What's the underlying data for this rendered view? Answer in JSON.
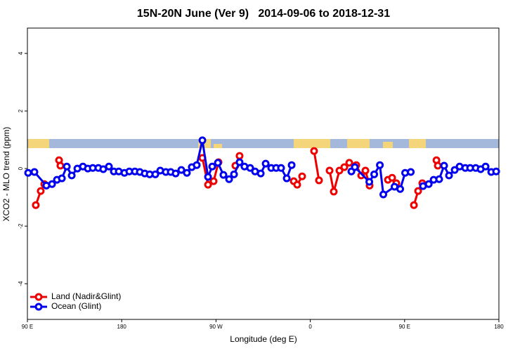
{
  "chart_data": {
    "type": "line",
    "title": "15N-20N June (Ver 9)   2014-09-06 to 2018-12-31",
    "xlabel": "Longitude (deg E)",
    "ylabel": "XCO2 - MLO trend (ppm)",
    "xlim": [
      90,
      540
    ],
    "ylim": [
      -5.24,
      4.88
    ],
    "xticks": [
      {
        "value": 90,
        "label": "90 E"
      },
      180,
      {
        "value": 270,
        "label": "90 W"
      },
      {
        "value": 360,
        "label": "0"
      },
      {
        "value": 450,
        "label": "90 E"
      },
      {
        "value": 540,
        "label": "180"
      }
    ],
    "yticks": [
      4,
      2,
      0,
      -2,
      -4
    ],
    "legend": "bottom-left",
    "series": [
      {
        "name": "Land (Nadir&Glint)",
        "color": "#ee0000",
        "x": [
          98.0,
          102.7,
          106.1,
          null,
          120.2,
          121.5,
          null,
          257.0,
          262.4,
          267.7,
          272.4,
          null,
          288.5,
          292.5,
          null,
          344.2,
          347.5,
          352.2,
          null,
          363.6,
          368.3,
          null,
          378.4,
          382.4,
          387.8,
          392.5,
          397.2,
          403.9,
          408.6,
          412.6,
          416.6,
          null,
          434.1,
          438.1,
          442.1,
          null,
          458.9,
          462.9,
          466.9,
          null,
          480.4,
          481.7
        ],
        "values": [
          -1.27,
          -0.78,
          -0.54,
          null,
          0.29,
          0.1,
          null,
          0.37,
          -0.56,
          -0.44,
          0.22,
          null,
          0.1,
          0.44,
          null,
          -0.44,
          -0.56,
          -0.27,
          null,
          0.61,
          -0.41,
          null,
          -0.07,
          -0.8,
          -0.07,
          0.05,
          0.2,
          0.12,
          -0.24,
          -0.07,
          -0.59,
          null,
          -0.39,
          -0.32,
          -0.51,
          null,
          -1.27,
          -0.78,
          -0.51,
          null,
          0.29,
          0.1
        ]
      },
      {
        "name": "Ocean (Glint)",
        "color": "#0000ee",
        "x": [
          90.7,
          96.7,
          108.1,
          113.5,
          118.2,
          122.9,
          127.6,
          132.3,
          137.7,
          143.0,
          147.7,
          152.4,
          157.7,
          162.4,
          167.8,
          172.5,
          177.2,
          182.6,
          187.3,
          192.6,
          197.3,
          202.0,
          206.7,
          212.1,
          216.8,
          222.1,
          226.8,
          231.5,
          236.9,
          242.2,
          246.9,
          251.6,
          257.0,
          262.4,
          266.4,
          271.8,
          277.1,
          282.5,
          287.2,
          292.5,
          297.2,
          302.6,
          307.3,
          312.7,
          317.4,
          322.7,
          327.4,
          332.1,
          337.5,
          342.2,
          null,
          399.2,
          402.5,
          416.3,
          421.0,
          426.4,
          429.7,
          440.4,
          445.8,
          450.5,
          455.9,
          null,
          467.6,
          473.0,
          477.7,
          483.0,
          487.7,
          492.4,
          497.8,
          502.5,
          507.9,
          512.6,
          517.9,
          522.6,
          527.3,
          532.7,
          537.4
        ],
        "values": [
          -0.15,
          -0.12,
          -0.59,
          -0.54,
          -0.39,
          -0.34,
          0.07,
          -0.24,
          0.0,
          0.07,
          0.0,
          0.02,
          0.02,
          -0.02,
          0.07,
          -0.1,
          -0.1,
          -0.15,
          -0.1,
          -0.1,
          -0.12,
          -0.17,
          -0.2,
          -0.2,
          -0.07,
          -0.12,
          -0.12,
          -0.17,
          -0.05,
          -0.15,
          0.05,
          0.12,
          0.98,
          -0.29,
          0.07,
          0.2,
          -0.22,
          -0.37,
          -0.2,
          0.22,
          0.07,
          0.02,
          -0.1,
          -0.17,
          0.17,
          0.02,
          0.02,
          0.02,
          -0.34,
          0.12,
          null,
          -0.1,
          0.05,
          -0.46,
          -0.2,
          0.12,
          -0.9,
          -0.63,
          -0.71,
          -0.15,
          -0.12,
          null,
          -0.61,
          -0.54,
          -0.39,
          -0.37,
          0.1,
          -0.24,
          -0.05,
          0.07,
          0.02,
          0.02,
          0.02,
          -0.02,
          0.07,
          -0.12,
          -0.1
        ]
      }
    ]
  }
}
